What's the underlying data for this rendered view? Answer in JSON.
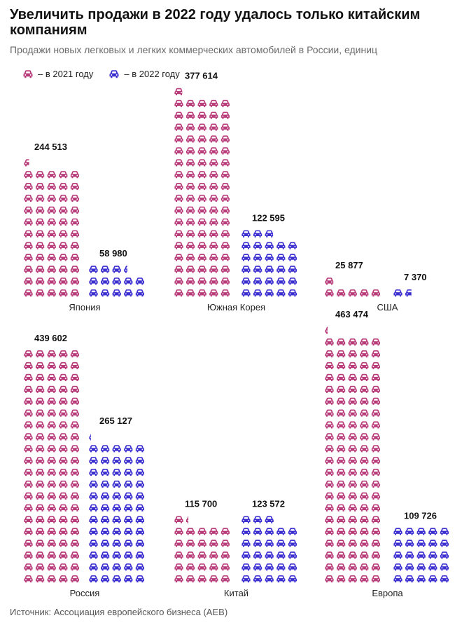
{
  "title": "Увеличить продажи в 2022 году удалось только китайским компаниям",
  "subtitle": "Продажи новых легковых и легких коммерческих автомобилей в России, единиц",
  "legend": {
    "y2021": "– в 2021 году",
    "y2022": "– в 2022 году"
  },
  "source": "Источник: Ассоциация европейского бизнеса (AEB)",
  "colors": {
    "y2021": "#b83b7a",
    "y2022": "#3b2fd0"
  },
  "icon": "car-icon",
  "chart_data": {
    "type": "pictogram-bar",
    "units_per_icon": 4400,
    "series": [
      {
        "name": "– в 2021 году"
      },
      {
        "name": "– в 2022 году"
      }
    ],
    "categories": [
      "Япония",
      "Южная Корея",
      "США",
      "Россия",
      "Китай",
      "Европа"
    ],
    "groups": [
      {
        "country": "Япония",
        "v2021": 244513,
        "v2021_label": "244 513",
        "v2022": 58980,
        "v2022_label": "58 980"
      },
      {
        "country": "Южная Корея",
        "v2021": 377614,
        "v2021_label": "377 614",
        "v2022": 122595,
        "v2022_label": "122 595"
      },
      {
        "country": "США",
        "v2021": 25877,
        "v2021_label": "25 877",
        "v2022": 7370,
        "v2022_label": "7 370"
      },
      {
        "country": "Россия",
        "v2021": 439602,
        "v2021_label": "439 602",
        "v2022": 265127,
        "v2022_label": "265 127"
      },
      {
        "country": "Китай",
        "v2021": 115700,
        "v2021_label": "115 700",
        "v2022": 123572,
        "v2022_label": "123 572"
      },
      {
        "country": "Европа",
        "v2021": 463474,
        "v2021_label": "463 474",
        "v2022": 109726,
        "v2022_label": "109 726"
      }
    ]
  }
}
